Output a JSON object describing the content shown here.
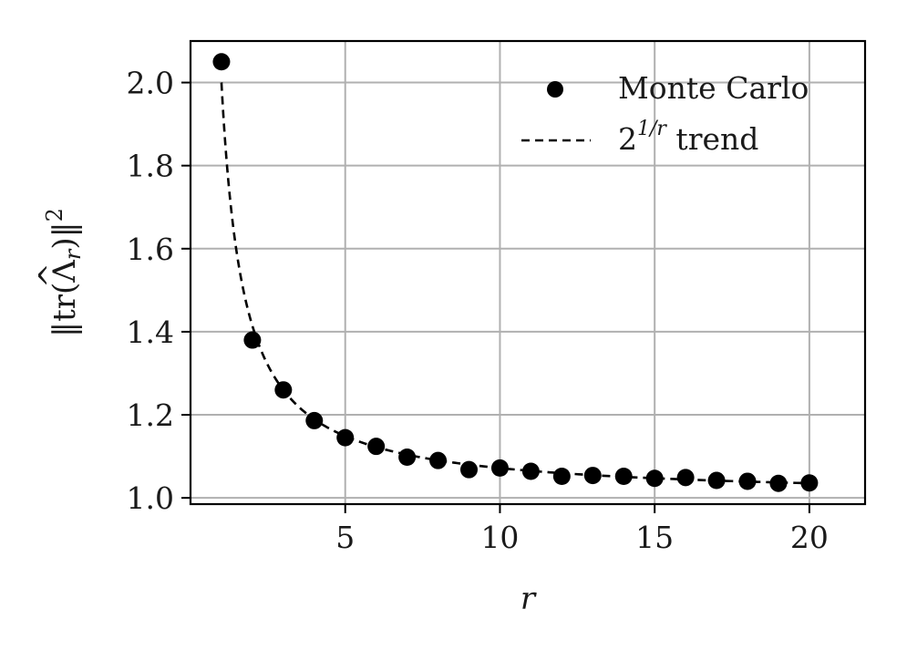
{
  "chart_data": {
    "type": "scatter",
    "x_label": "r",
    "y_label_parts": {
      "norm": "‖",
      "tr": "tr(",
      "lambda": "Λ",
      "hat": "^",
      "sub": "r",
      "close": ")",
      "power": "2"
    },
    "xlim": [
      0,
      21.8
    ],
    "ylim": [
      0.985,
      2.1
    ],
    "x_ticks": [
      5,
      10,
      15,
      20
    ],
    "y_ticks": [
      1.0,
      1.2,
      1.4,
      1.6,
      1.8,
      2.0
    ],
    "x_tick_labels": [
      "5",
      "10",
      "15",
      "20"
    ],
    "y_tick_labels": [
      "1.0",
      "1.2",
      "1.4",
      "1.6",
      "1.8",
      "2.0"
    ],
    "grid": true,
    "legend_position": "top-right",
    "series": [
      {
        "name": "Monte Carlo",
        "kind": "scatter",
        "color": "#000000",
        "x": [
          1,
          2,
          3,
          4,
          5,
          6,
          7,
          8,
          9,
          10,
          11,
          12,
          13,
          14,
          15,
          16,
          17,
          18,
          19,
          20
        ],
        "y": [
          2.05,
          1.38,
          1.26,
          1.186,
          1.145,
          1.124,
          1.098,
          1.09,
          1.068,
          1.072,
          1.064,
          1.052,
          1.054,
          1.052,
          1.047,
          1.049,
          1.042,
          1.04,
          1.035,
          1.036
        ]
      },
      {
        "name_base": "2",
        "name_exp": "1/r",
        "name_suffix": " trend",
        "kind": "dashed-line",
        "color": "#000000",
        "function": "2^(1/r)",
        "x_range": [
          1,
          20
        ]
      }
    ]
  }
}
